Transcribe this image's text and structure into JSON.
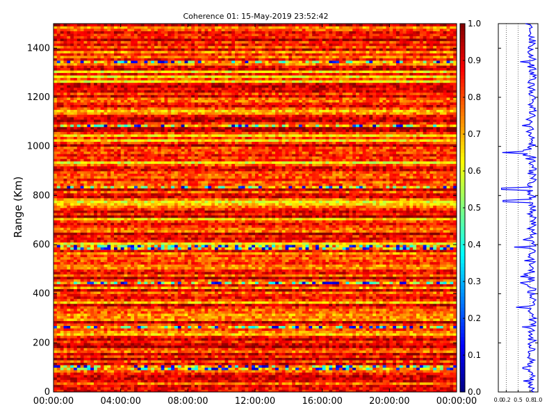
{
  "chart_data": [
    {
      "type": "heatmap",
      "title": "Coherence 01: 15-May-2019 23:52:42",
      "xlabel": "",
      "ylabel": "Range (Km)",
      "x_tick_labels": [
        "00:00:00",
        "04:00:00",
        "08:00:00",
        "12:00:00",
        "16:00:00",
        "20:00:00",
        "00:00:00"
      ],
      "x_range_hours": [
        0,
        24
      ],
      "y_ticks": [
        0,
        200,
        400,
        600,
        800,
        1000,
        1200,
        1400
      ],
      "ylim": [
        0,
        1500
      ],
      "colormap": "jet",
      "colorbar_range": [
        0.0,
        1.0
      ],
      "colorbar_ticks": [
        "0.0",
        "0.1",
        "0.2",
        "0.3",
        "0.4",
        "0.5",
        "0.6",
        "0.7",
        "0.8",
        "0.9",
        "1.0"
      ],
      "n_range_bins": 150,
      "n_time_bins": 120,
      "low_coherence_bands_km": [
        100,
        265,
        445,
        590,
        835,
        1085,
        1345
      ],
      "typical_coherence": 0.85
    },
    {
      "type": "line",
      "title": "",
      "xlim": [
        0.0,
        1.0
      ],
      "x_tick_labels": [
        "0.0",
        "0.2",
        "0.5",
        "0.8",
        "1.0"
      ],
      "ylim": [
        0,
        1500
      ],
      "series": [
        {
          "color": "#0000ff",
          "profile_points": [
            {
              "range": 0,
              "coh": 0.85
            },
            {
              "range": 45,
              "coh": 0.75
            },
            {
              "range": 100,
              "coh": 0.62
            },
            {
              "range": 150,
              "coh": 0.83
            },
            {
              "range": 265,
              "coh": 0.6
            },
            {
              "range": 345,
              "coh": 0.45
            },
            {
              "range": 445,
              "coh": 0.55
            },
            {
              "range": 590,
              "coh": 0.4
            },
            {
              "range": 720,
              "coh": 0.82
            },
            {
              "range": 780,
              "coh": 0.12
            },
            {
              "range": 830,
              "coh": 0.08
            },
            {
              "range": 975,
              "coh": 0.1
            },
            {
              "range": 1085,
              "coh": 0.6
            },
            {
              "range": 1290,
              "coh": 0.7
            },
            {
              "range": 1345,
              "coh": 0.55
            },
            {
              "range": 1450,
              "coh": 0.78
            },
            {
              "range": 1500,
              "coh": 0.88
            }
          ]
        }
      ],
      "vlines": [
        0.2,
        0.5,
        0.8
      ]
    }
  ]
}
